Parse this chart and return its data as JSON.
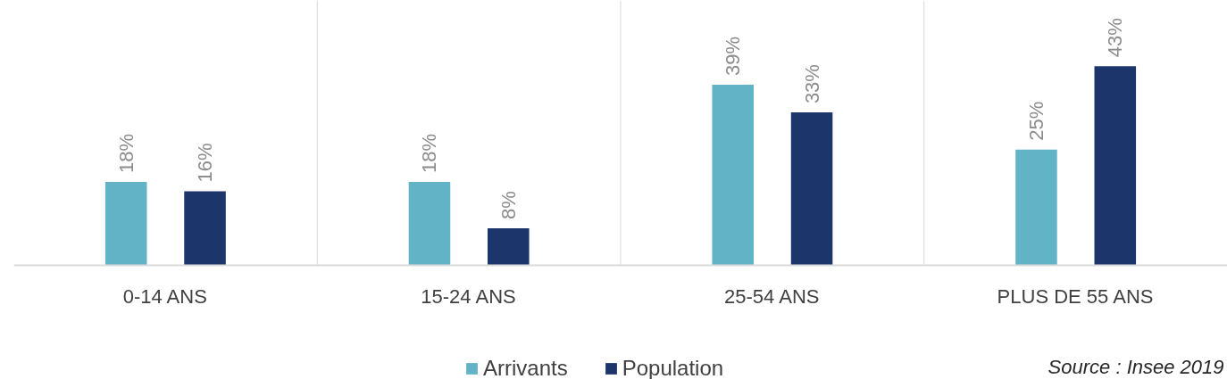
{
  "chart_data": {
    "type": "bar",
    "categories": [
      "0-14 ANS",
      "15-24 ANS",
      "25-54 ANS",
      "PLUS DE 55 ANS"
    ],
    "series": [
      {
        "name": "Arrivants",
        "color": "#63b3c6",
        "values": [
          18,
          18,
          39,
          25
        ],
        "value_labels": [
          "18%",
          "18%",
          "39%",
          "25%"
        ]
      },
      {
        "name": "Population",
        "color": "#1c366b",
        "values": [
          16,
          8,
          33,
          43
        ],
        "value_labels": [
          "16%",
          "8%",
          "33%",
          "43%"
        ]
      }
    ],
    "legend": "bottom",
    "tick_labels": "x",
    "annotations": [
      "Source : Insee 2019"
    ]
  }
}
